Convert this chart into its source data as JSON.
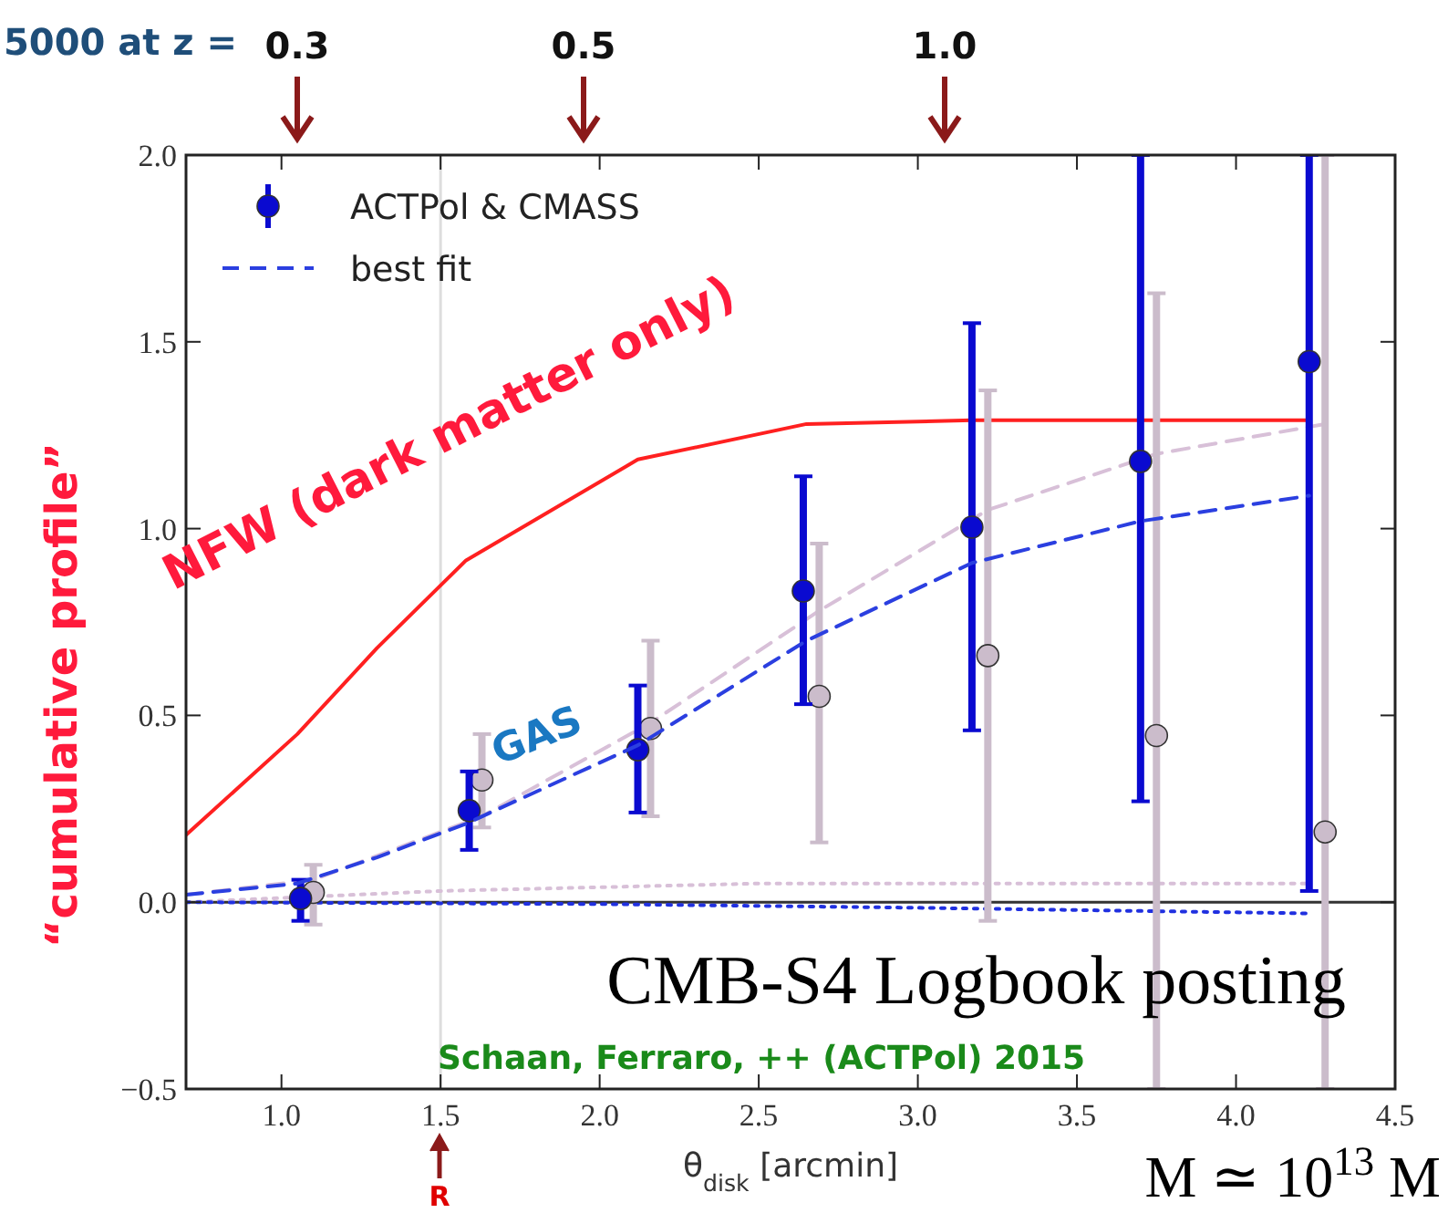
{
  "chart_data": {
    "type": "scatter",
    "xlabel": "θ$_{disk}$ [arcmin]",
    "ylabel": "“cumulative profile”",
    "xlim": [
      0.7,
      4.5
    ],
    "ylim": [
      -0.5,
      2.0
    ],
    "xticks": [
      {
        "value": 1.0,
        "label": "1.0"
      },
      {
        "value": 1.5,
        "label": "1.5"
      },
      {
        "value": 2.0,
        "label": "2.0"
      },
      {
        "value": 2.5,
        "label": "2.5"
      },
      {
        "value": 3.0,
        "label": "3.0"
      },
      {
        "value": 3.5,
        "label": "3.5"
      },
      {
        "value": 4.0,
        "label": "4.0"
      },
      {
        "value": 4.5,
        "label": "4.5"
      }
    ],
    "yticks": [
      {
        "value": -0.5,
        "label": "−0.5"
      },
      {
        "value": 0,
        "label": "0.0"
      },
      {
        "value": 0.5,
        "label": "0.5"
      },
      {
        "value": 1.0,
        "label": "1.0"
      },
      {
        "value": 1.5,
        "label": "1.5"
      },
      {
        "value": 2.0,
        "label": "2.0"
      }
    ],
    "grid": false,
    "legend": "top left",
    "series": [
      {
        "type": "line",
        "color": "#ff2020",
        "line_style": "solid",
        "x": [
          0.7,
          1.05,
          1.3,
          1.58,
          2.12,
          2.65,
          3.17,
          4.23
        ],
        "values": [
          0.18,
          0.45,
          0.68,
          0.915,
          1.185,
          1.28,
          1.29,
          1.29
        ]
      },
      {
        "type": "line",
        "color": "#d8c0d8",
        "line_style": "dashed",
        "x": [
          0.7,
          1.1,
          1.63,
          2.16,
          2.69,
          3.22,
          3.75,
          4.28
        ],
        "values": [
          0.02,
          0.06,
          0.23,
          0.48,
          0.78,
          1.05,
          1.2,
          1.28
        ]
      },
      {
        "type": "line",
        "color": "#d8c0d8",
        "line_style": "dotted",
        "x": [
          0.7,
          1.5,
          2.5,
          4.23
        ],
        "values": [
          0.0,
          0.03,
          0.05,
          0.05
        ]
      },
      {
        "type": "line",
        "color": "#2030e0",
        "line_style": "dotted",
        "x": [
          0.7,
          2.0,
          3.0,
          4.23
        ],
        "values": [
          0.0,
          -0.005,
          -0.015,
          -0.03
        ]
      },
      {
        "color": "#cbbccb",
        "marker": "circle",
        "x": [
          1.1,
          1.63,
          2.16,
          2.69,
          3.22,
          3.75,
          4.28
        ],
        "values": [
          0.026,
          0.327,
          0.465,
          0.551,
          0.66,
          0.446,
          0.188
        ],
        "errors": [
          [
            -0.06,
            0.1
          ],
          [
            0.2,
            0.45
          ],
          [
            0.23,
            0.7
          ],
          [
            0.16,
            0.96
          ],
          [
            -0.05,
            1.37
          ],
          [
            -0.5,
            1.63
          ],
          [
            -0.5,
            2.0
          ]
        ]
      },
      {
        "name": "ACTPol & CMASS",
        "color": "#0a0ad0",
        "marker": "circle",
        "x": [
          1.06,
          1.59,
          2.12,
          2.64,
          3.17,
          3.7,
          4.23
        ],
        "values": [
          0.01,
          0.245,
          0.408,
          0.833,
          1.004,
          1.18,
          1.447
        ],
        "errors": [
          [
            -0.05,
            0.06
          ],
          [
            0.14,
            0.35
          ],
          [
            0.24,
            0.58
          ],
          [
            0.53,
            1.14
          ],
          [
            0.46,
            1.55
          ],
          [
            0.27,
            2.0
          ],
          [
            0.03,
            2.0
          ]
        ]
      },
      {
        "type": "line",
        "name": "best fit",
        "color": "#2b3fe0",
        "line_style": "dashed",
        "x": [
          0.7,
          1.05,
          1.3,
          1.58,
          2.12,
          2.65,
          3.17,
          3.7,
          4.23
        ],
        "values": [
          0.02,
          0.05,
          0.12,
          0.21,
          0.42,
          0.7,
          0.908,
          1.02,
          1.088
        ]
      }
    ],
    "ref_lines": [
      {
        "axis": "y",
        "value": 0,
        "color": "#333333"
      },
      {
        "axis": "x",
        "value": 1.5,
        "color": "#dddddd"
      }
    ],
    "annotations": [
      "5000 at z =",
      "0.3",
      "0.5",
      "1.0",
      "NFW (dark matter only)",
      "GAS",
      "CMB-S4 Logbook posting",
      "Schaan, Ferraro, ++ (ACTPol) 2015",
      "R",
      "M ≃ 10$^{13}$ M"
    ]
  }
}
